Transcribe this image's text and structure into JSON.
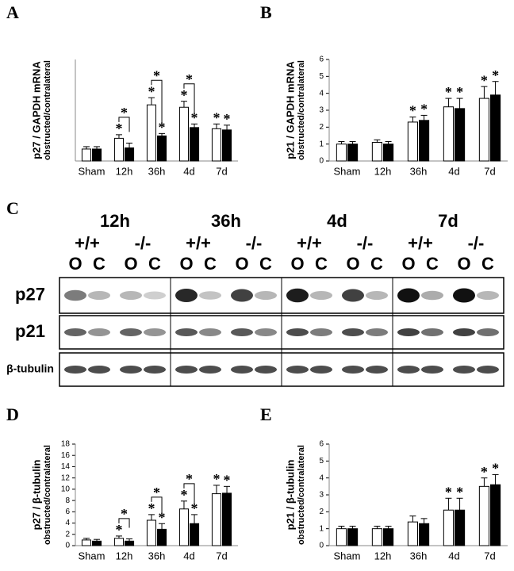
{
  "chart_data": [
    {
      "type": "bar",
      "panel": "A",
      "ylabel": [
        "p27 / GAPDH mRNA",
        "obstructed/contralateral"
      ],
      "categories": [
        "Sham",
        "12h",
        "36h",
        "4d",
        "7d"
      ],
      "ylim": [
        0,
        8.5
      ],
      "series": [
        {
          "color": "#ffffff",
          "values": [
            1.0,
            1.9,
            4.7,
            4.5,
            2.7
          ],
          "errors": [
            0.2,
            0.3,
            0.6,
            0.5,
            0.4
          ]
        },
        {
          "color": "#000000",
          "values": [
            1.0,
            1.1,
            2.1,
            2.8,
            2.6
          ],
          "errors": [
            0.2,
            0.4,
            0.2,
            0.3,
            0.4
          ]
        }
      ],
      "annotations": [
        {
          "text": "*",
          "series": 0,
          "index": 1
        },
        {
          "text": "*",
          "bracket": 1
        },
        {
          "text": "*",
          "series": 0,
          "index": 2
        },
        {
          "text": "*",
          "series": 1,
          "index": 2
        },
        {
          "text": "*",
          "bracket": 2
        },
        {
          "text": "*",
          "series": 0,
          "index": 3
        },
        {
          "text": "*",
          "series": 1,
          "index": 3
        },
        {
          "text": "*",
          "bracket": 3
        },
        {
          "text": "*",
          "series": 0,
          "index": 4
        },
        {
          "text": "*",
          "series": 1,
          "index": 4
        }
      ]
    },
    {
      "type": "bar",
      "panel": "B",
      "ylabel": [
        "p21 / GAPDH mRNA",
        "obstructed/contralateral"
      ],
      "categories": [
        "Sham",
        "12h",
        "36h",
        "4d",
        "7d"
      ],
      "ylim": [
        0,
        6
      ],
      "yticks": [
        0,
        1,
        2,
        3,
        4,
        5,
        6
      ],
      "series": [
        {
          "color": "#ffffff",
          "values": [
            1.0,
            1.1,
            2.3,
            3.2,
            3.7
          ],
          "errors": [
            0.15,
            0.15,
            0.3,
            0.5,
            0.7
          ]
        },
        {
          "color": "#000000",
          "values": [
            1.0,
            1.0,
            2.4,
            3.1,
            3.9
          ],
          "errors": [
            0.15,
            0.15,
            0.3,
            0.6,
            0.8
          ]
        }
      ],
      "annotations": [
        {
          "text": "*",
          "series": 0,
          "index": 2
        },
        {
          "text": "*",
          "series": 1,
          "index": 2
        },
        {
          "text": "*",
          "series": 0,
          "index": 3
        },
        {
          "text": "*",
          "series": 1,
          "index": 3
        },
        {
          "text": "*",
          "series": 0,
          "index": 4
        },
        {
          "text": "*",
          "series": 1,
          "index": 4
        }
      ]
    },
    {
      "type": "bar",
      "panel": "D",
      "ylabel": [
        "p27 / β-tubulin",
        "obstructed/contralateral"
      ],
      "categories": [
        "Sham",
        "12h",
        "36h",
        "4d",
        "7d"
      ],
      "ylim": [
        0,
        18
      ],
      "yticks": [
        0,
        2,
        4,
        6,
        8,
        10,
        12,
        14,
        16,
        18
      ],
      "series": [
        {
          "color": "#ffffff",
          "values": [
            1.0,
            1.3,
            4.5,
            6.5,
            9.2
          ],
          "errors": [
            0.3,
            0.4,
            1.0,
            1.4,
            1.5
          ]
        },
        {
          "color": "#000000",
          "values": [
            0.8,
            0.8,
            2.9,
            3.9,
            9.3
          ],
          "errors": [
            0.3,
            0.4,
            1.0,
            1.6,
            1.2
          ]
        }
      ],
      "annotations": [
        {
          "text": "*",
          "series": 0,
          "index": 1
        },
        {
          "text": "*",
          "bracket": 1
        },
        {
          "text": "*",
          "series": 0,
          "index": 2
        },
        {
          "text": "*",
          "series": 1,
          "index": 2
        },
        {
          "text": "*",
          "bracket": 2
        },
        {
          "text": "*",
          "series": 0,
          "index": 3
        },
        {
          "text": "*",
          "series": 1,
          "index": 3
        },
        {
          "text": "*",
          "bracket": 3
        },
        {
          "text": "*",
          "series": 0,
          "index": 4
        },
        {
          "text": "*",
          "series": 1,
          "index": 4
        }
      ]
    },
    {
      "type": "bar",
      "panel": "E",
      "ylabel": [
        "p21 / β-tubulin",
        "obstructed/contralateral"
      ],
      "categories": [
        "Sham",
        "12h",
        "36h",
        "4d",
        "7d"
      ],
      "ylim": [
        0,
        6
      ],
      "yticks": [
        0,
        1,
        2,
        3,
        4,
        5,
        6
      ],
      "series": [
        {
          "color": "#ffffff",
          "values": [
            1.0,
            1.0,
            1.4,
            2.1,
            3.5
          ],
          "errors": [
            0.15,
            0.15,
            0.35,
            0.7,
            0.5
          ]
        },
        {
          "color": "#000000",
          "values": [
            1.0,
            1.0,
            1.3,
            2.1,
            3.6
          ],
          "errors": [
            0.15,
            0.15,
            0.3,
            0.7,
            0.6
          ]
        }
      ],
      "annotations": [
        {
          "text": "*",
          "series": 0,
          "index": 3
        },
        {
          "text": "*",
          "series": 1,
          "index": 3
        },
        {
          "text": "*",
          "series": 0,
          "index": 4
        },
        {
          "text": "*",
          "series": 1,
          "index": 4
        }
      ]
    }
  ],
  "blot": {
    "panel": "C",
    "timepoints": [
      "12h",
      "36h",
      "4d",
      "7d"
    ],
    "genotypes": [
      "+/+",
      "-/-"
    ],
    "lanes": [
      "O",
      "C"
    ],
    "rows": [
      "p27",
      "p21",
      "β-tubulin"
    ]
  }
}
